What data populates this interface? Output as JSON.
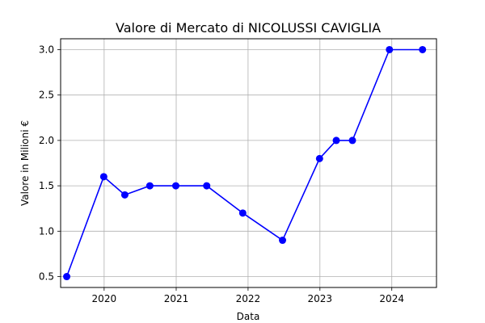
{
  "chart_data": {
    "type": "line",
    "title": "Valore di Mercato di NICOLUSSI CAVIGLIA",
    "xlabel": "Data",
    "ylabel": "Valore in Milioni €",
    "x_axis_type": "date",
    "xlim": [
      "2019-05-25",
      "2024-08-15"
    ],
    "ylim": [
      0.38,
      3.12
    ],
    "x_ticks": [
      "2020-01-01",
      "2021-01-01",
      "2022-01-01",
      "2023-01-01",
      "2024-01-01"
    ],
    "x_tick_labels": [
      "2020",
      "2021",
      "2022",
      "2023",
      "2024"
    ],
    "y_ticks": [
      0.5,
      1.0,
      1.5,
      2.0,
      2.5,
      3.0
    ],
    "y_tick_labels": [
      "0.5",
      "1.0",
      "1.5",
      "2.0",
      "2.5",
      "3.0"
    ],
    "grid": true,
    "series": [
      {
        "color": "#0000ff",
        "marker": "circle",
        "points": [
          {
            "x": "2019-06-25",
            "y": 0.5
          },
          {
            "x": "2019-12-30",
            "y": 1.6
          },
          {
            "x": "2020-04-15",
            "y": 1.4
          },
          {
            "x": "2020-08-20",
            "y": 1.5
          },
          {
            "x": "2020-12-30",
            "y": 1.5
          },
          {
            "x": "2021-06-05",
            "y": 1.5
          },
          {
            "x": "2021-12-05",
            "y": 1.2
          },
          {
            "x": "2022-06-25",
            "y": 0.9
          },
          {
            "x": "2022-12-30",
            "y": 1.8
          },
          {
            "x": "2023-03-25",
            "y": 2.0
          },
          {
            "x": "2023-06-15",
            "y": 2.0
          },
          {
            "x": "2023-12-20",
            "y": 3.0
          },
          {
            "x": "2024-06-05",
            "y": 3.0
          }
        ]
      }
    ]
  }
}
